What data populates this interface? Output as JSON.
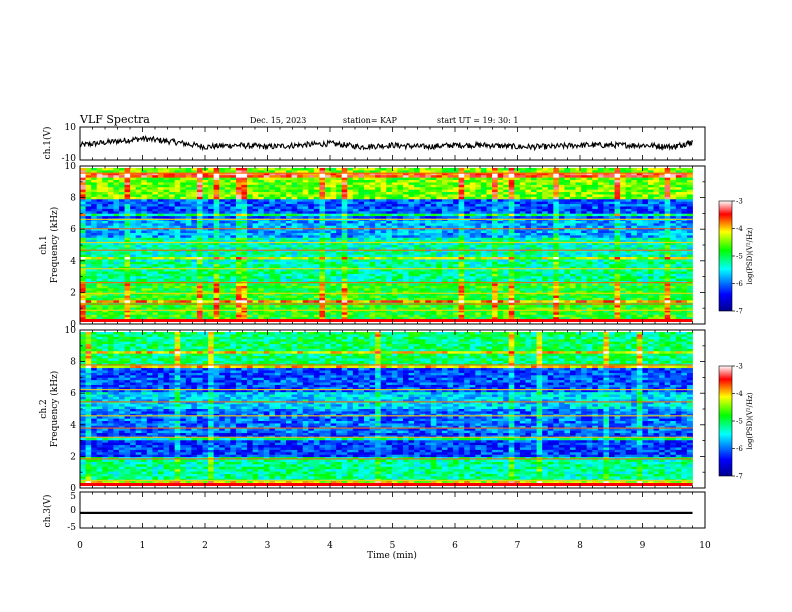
{
  "header": {
    "title": "VLF Spectra",
    "date": "Dec. 15, 2023",
    "station": "station= KAP",
    "start": "start  UT  =   19: 30: 1"
  },
  "chart_data": [
    {
      "type": "line",
      "panel": "ch1-waveform",
      "ylabel": "ch.1(V)",
      "ylim": [
        -10,
        10
      ],
      "y_ticks": [
        "10",
        "-10"
      ],
      "xlim": [
        0,
        10
      ],
      "series_color": "#000000",
      "x": [
        0,
        0.5,
        1,
        1.5,
        2,
        2.5,
        3,
        3.5,
        4,
        4.5,
        5,
        5.5,
        6,
        6.5,
        7,
        7.5,
        8,
        8.5,
        9,
        9.5,
        9.8
      ],
      "values": [
        -1,
        1,
        3,
        1,
        -2,
        -1,
        -2,
        -1,
        0,
        -2,
        -1,
        -2,
        -1,
        -1,
        -2,
        -2,
        -1,
        -1,
        -1,
        -2,
        1
      ]
    },
    {
      "type": "heatmap",
      "panel": "ch1-spectrogram",
      "ylabel": "ch.1\nFrequency (kHz)",
      "ylim": [
        0,
        10
      ],
      "y_ticks": [
        "0",
        "2",
        "4",
        "6",
        "8",
        "10"
      ],
      "xlim": [
        0,
        9.8
      ],
      "colorbar": {
        "label": "log(PSD)(V²/Hz)",
        "range": [
          -7,
          -3
        ],
        "ticks": [
          "-3",
          "-4",
          "-5",
          "-6",
          "-7"
        ]
      }
    },
    {
      "type": "heatmap",
      "panel": "ch2-spectrogram",
      "ylabel": "ch.2\nFrequency (kHz)",
      "ylim": [
        0,
        10
      ],
      "y_ticks": [
        "0",
        "2",
        "4",
        "6",
        "8",
        "10"
      ],
      "xlim": [
        0,
        9.8
      ],
      "colorbar": {
        "label": "log(PSD)(V²/Hz)",
        "range": [
          -7,
          -3
        ],
        "ticks": [
          "-3",
          "-4",
          "-5",
          "-6",
          "-7"
        ]
      }
    },
    {
      "type": "line",
      "panel": "ch3-waveform",
      "ylabel": "ch.3(V)",
      "ylim": [
        -5,
        5
      ],
      "y_ticks": [
        "5",
        "0",
        "-5"
      ],
      "xlim": [
        0,
        10
      ],
      "values": [
        -1.1,
        -0.5
      ],
      "series_color": "#000000"
    }
  ],
  "x_axis": {
    "label": "Time  (min)",
    "ticks": [
      "0",
      "1",
      "2",
      "3",
      "4",
      "5",
      "6",
      "7",
      "8",
      "9",
      "10"
    ],
    "range": [
      0,
      10
    ]
  },
  "colors": {
    "colormap": [
      "#00008f",
      "#0000ff",
      "#00ffff",
      "#00ff00",
      "#ffff00",
      "#ff0000",
      "#ffffff"
    ]
  }
}
